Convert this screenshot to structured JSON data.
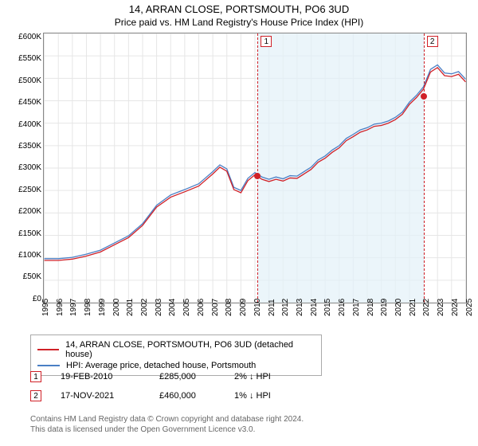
{
  "title": "14, ARRAN CLOSE, PORTSMOUTH, PO6 3UD",
  "subtitle": "Price paid vs. HM Land Registry's House Price Index (HPI)",
  "chart": {
    "type": "line",
    "background_color": "#ffffff",
    "grid_color": "#e6e6e6",
    "border_color": "#888888",
    "shade_color": "#e2f1f8",
    "y": {
      "min": 0,
      "max": 600000,
      "step": 50000,
      "labels": [
        "£600K",
        "£550K",
        "£500K",
        "£450K",
        "£400K",
        "£350K",
        "£300K",
        "£250K",
        "£200K",
        "£150K",
        "£100K",
        "£50K",
        "£0"
      ],
      "fontsize": 10
    },
    "x": {
      "min": 1995,
      "max": 2025,
      "step": 1,
      "labels": [
        "1995",
        "1996",
        "1997",
        "1998",
        "1999",
        "2000",
        "2001",
        "2002",
        "2003",
        "2004",
        "2005",
        "2006",
        "2007",
        "2008",
        "2009",
        "2010",
        "2011",
        "2012",
        "2013",
        "2014",
        "2015",
        "2016",
        "2017",
        "2018",
        "2019",
        "2020",
        "2021",
        "2022",
        "2023",
        "2024",
        "2025"
      ],
      "fontsize": 10
    },
    "series": [
      {
        "name": "hpi",
        "label": "HPI: Average price, detached house, Portsmouth",
        "color": "#4a7fc5",
        "line_width": 1.3,
        "data": [
          [
            1995,
            98000
          ],
          [
            1996,
            98000
          ],
          [
            1997,
            101000
          ],
          [
            1998,
            108000
          ],
          [
            1999,
            117000
          ],
          [
            2000,
            133000
          ],
          [
            2001,
            149000
          ],
          [
            2002,
            176000
          ],
          [
            2003,
            217000
          ],
          [
            2004,
            240000
          ],
          [
            2005,
            252000
          ],
          [
            2006,
            265000
          ],
          [
            2007,
            292000
          ],
          [
            2007.5,
            307000
          ],
          [
            2008,
            298000
          ],
          [
            2008.5,
            257000
          ],
          [
            2009,
            250000
          ],
          [
            2009.5,
            277000
          ],
          [
            2010,
            290000
          ],
          [
            2010.5,
            280000
          ],
          [
            2011,
            275000
          ],
          [
            2011.5,
            280000
          ],
          [
            2012,
            276000
          ],
          [
            2012.5,
            283000
          ],
          [
            2013,
            282000
          ],
          [
            2013.5,
            292000
          ],
          [
            2014,
            302000
          ],
          [
            2014.5,
            318000
          ],
          [
            2015,
            327000
          ],
          [
            2015.5,
            340000
          ],
          [
            2016,
            350000
          ],
          [
            2016.5,
            366000
          ],
          [
            2017,
            375000
          ],
          [
            2017.5,
            385000
          ],
          [
            2018,
            390000
          ],
          [
            2018.5,
            398000
          ],
          [
            2019,
            400000
          ],
          [
            2019.5,
            405000
          ],
          [
            2020,
            413000
          ],
          [
            2020.5,
            425000
          ],
          [
            2021,
            447000
          ],
          [
            2021.5,
            462000
          ],
          [
            2022,
            481000
          ],
          [
            2022.5,
            520000
          ],
          [
            2023,
            530000
          ],
          [
            2023.5,
            512000
          ],
          [
            2024,
            510000
          ],
          [
            2024.5,
            515000
          ],
          [
            2025,
            498000
          ]
        ]
      },
      {
        "name": "property",
        "label": "14, ARRAN CLOSE, PORTSMOUTH, PO6 3UD (detached house)",
        "color": "#d02128",
        "line_width": 1.3,
        "data": [
          [
            1995,
            94000
          ],
          [
            1996,
            94000
          ],
          [
            1997,
            97000
          ],
          [
            1998,
            104000
          ],
          [
            1999,
            113000
          ],
          [
            2000,
            129000
          ],
          [
            2001,
            145000
          ],
          [
            2002,
            172000
          ],
          [
            2003,
            213000
          ],
          [
            2004,
            235000
          ],
          [
            2005,
            247000
          ],
          [
            2006,
            260000
          ],
          [
            2007,
            287000
          ],
          [
            2007.5,
            302000
          ],
          [
            2008,
            293000
          ],
          [
            2008.5,
            252000
          ],
          [
            2009,
            245000
          ],
          [
            2009.5,
            272000
          ],
          [
            2010,
            285000
          ],
          [
            2010.5,
            275000
          ],
          [
            2011,
            270000
          ],
          [
            2011.5,
            275000
          ],
          [
            2012,
            271000
          ],
          [
            2012.5,
            278000
          ],
          [
            2013,
            277000
          ],
          [
            2013.5,
            287000
          ],
          [
            2014,
            297000
          ],
          [
            2014.5,
            313000
          ],
          [
            2015,
            322000
          ],
          [
            2015.5,
            335000
          ],
          [
            2016,
            345000
          ],
          [
            2016.5,
            361000
          ],
          [
            2017,
            370000
          ],
          [
            2017.5,
            380000
          ],
          [
            2018,
            385000
          ],
          [
            2018.5,
            393000
          ],
          [
            2019,
            395000
          ],
          [
            2019.5,
            400000
          ],
          [
            2020,
            408000
          ],
          [
            2020.5,
            420000
          ],
          [
            2021,
            442000
          ],
          [
            2021.5,
            457000
          ],
          [
            2022,
            476000
          ],
          [
            2022.5,
            514000
          ],
          [
            2023,
            524000
          ],
          [
            2023.5,
            506000
          ],
          [
            2024,
            504000
          ],
          [
            2024.5,
            509000
          ],
          [
            2025,
            492000
          ]
        ]
      }
    ],
    "markers": [
      {
        "n": "1",
        "year": 2010.13,
        "price": 285000
      },
      {
        "n": "2",
        "year": 2021.88,
        "price": 460000
      }
    ],
    "marker_color": "#d02128",
    "marker_dash": "4,3"
  },
  "legend": {
    "items": [
      {
        "color": "#d02128",
        "label": "14, ARRAN CLOSE, PORTSMOUTH, PO6 3UD (detached house)"
      },
      {
        "color": "#4a7fc5",
        "label": "HPI: Average price, detached house, Portsmouth"
      }
    ]
  },
  "sales": [
    {
      "n": "1",
      "date": "19-FEB-2010",
      "price": "£285,000",
      "hpi": "2% ↓ HPI"
    },
    {
      "n": "2",
      "date": "17-NOV-2021",
      "price": "£460,000",
      "hpi": "1% ↓ HPI"
    }
  ],
  "footer": {
    "line1": "Contains HM Land Registry data © Crown copyright and database right 2024.",
    "line2": "This data is licensed under the Open Government Licence v3.0."
  }
}
